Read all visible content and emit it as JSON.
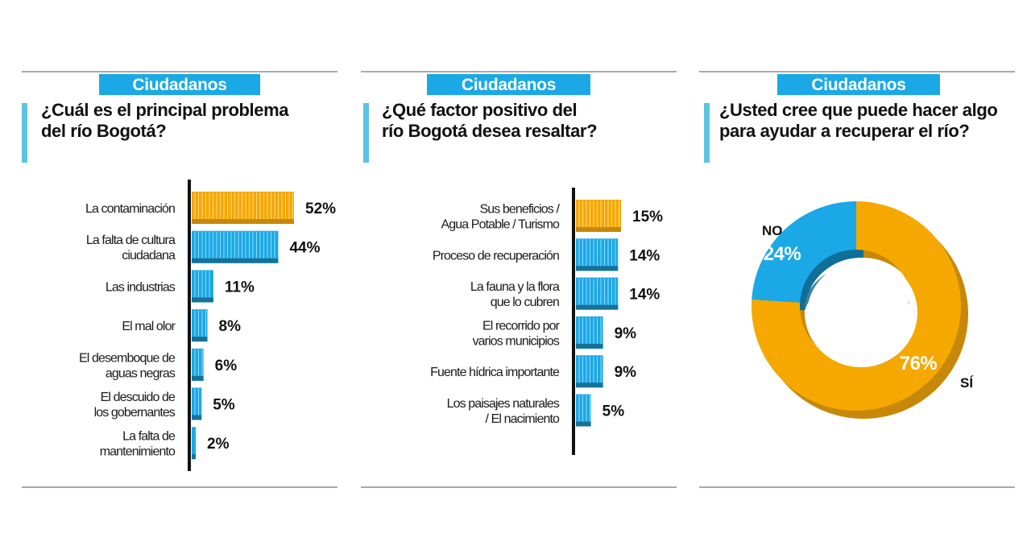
{
  "panels": [
    {
      "badge": "Ciudadanos",
      "question_lines": [
        "¿Cuál es el principal problema",
        "del río Bogotá?"
      ]
    },
    {
      "badge": "Ciudadanos",
      "question_lines": [
        "¿Qué factor positivo del",
        "río Bogotá desea resaltar?"
      ]
    },
    {
      "badge": "Ciudadanos",
      "question_lines": [
        "¿Usted cree que puede hacer algo",
        "para ayudar a recuperar el río?"
      ]
    }
  ],
  "colors": {
    "badge": "#1aa9e6",
    "accent_bar": "#5bc3e3",
    "blue": "#1aa9e6",
    "blue_dark": "#14729a",
    "orange": "#f5a800",
    "orange_dark": "#c7880a",
    "rule": "#a9a9a9"
  },
  "chart_data": [
    {
      "type": "bar",
      "orientation": "horizontal",
      "categories": [
        [
          "La contaminación"
        ],
        [
          "La falta de cultura",
          "ciudadana"
        ],
        [
          "Las industrias"
        ],
        [
          "El mal olor"
        ],
        [
          "El desemboque de",
          "aguas negras"
        ],
        [
          "El descuido de",
          "los gobernantes"
        ],
        [
          "La falta de",
          "mantenimiento"
        ]
      ],
      "values": [
        52,
        44,
        11,
        8,
        6,
        5,
        2
      ],
      "value_labels": [
        "52%",
        "44%",
        "11%",
        "8%",
        "6%",
        "5%",
        "2%"
      ],
      "highlight_index": 0
    },
    {
      "type": "bar",
      "orientation": "horizontal",
      "categories": [
        [
          "Sus beneficios /",
          "Agua Potable / Turismo"
        ],
        [
          "Proceso de recuperación"
        ],
        [
          "La fauna y la flora",
          "que lo cubren"
        ],
        [
          "El recorrido por",
          "varios municipios"
        ],
        [
          "Fuente hídrica importante"
        ],
        [
          "Los paisajes naturales",
          "/ El nacimiento"
        ]
      ],
      "values": [
        15,
        14,
        14,
        9,
        9,
        5
      ],
      "value_labels": [
        "15%",
        "14%",
        "14%",
        "9%",
        "9%",
        "5%"
      ],
      "highlight_index": 0
    },
    {
      "type": "pie",
      "donut": true,
      "categories": [
        "NO",
        "SÍ"
      ],
      "values": [
        24,
        76
      ],
      "value_labels": [
        "24%",
        "76%"
      ],
      "colors": [
        "#1aa9e6",
        "#f5a800"
      ]
    }
  ]
}
